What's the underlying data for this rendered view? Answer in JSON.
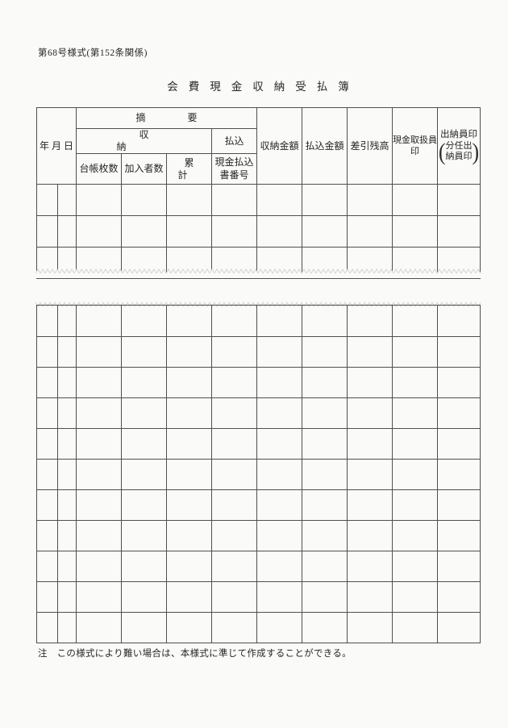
{
  "page": {
    "form_label": "第68号様式(第152条関係)",
    "title": "会費現金収納受払簿",
    "note": "注　この様式により難い場合は、本様式に準じて作成することができる。"
  },
  "colors": {
    "paper": "#fafaf8",
    "grid_line": "#4f4f4f",
    "tear_edge": "#d4d4d4",
    "text": "#262626"
  },
  "table": {
    "header": {
      "date": "年月日",
      "summary": "摘要",
      "receipt_group": "収納",
      "payment_group": "払込",
      "ledger_sheets": "台帳枚数",
      "subscribers": "加入者数",
      "cumulative": "累計",
      "payment_slip_line1": "現金払込",
      "payment_slip_line2": "書番号",
      "receipt_amount": "収納金額",
      "payment_amount": "払込金額",
      "balance": "差引残高",
      "cash_handler_line1": "現金取扱員",
      "cash_handler_line2": "印",
      "cashier_seal_line1": "出納員印",
      "cashier_paren_open": "(",
      "cashier_paren_line1": "分任出",
      "cashier_paren_line2": "納員印",
      "cashier_paren_close": ")"
    },
    "upper_body_rows": 3,
    "lower_body_rows": 11,
    "columns_per_row": 11
  }
}
